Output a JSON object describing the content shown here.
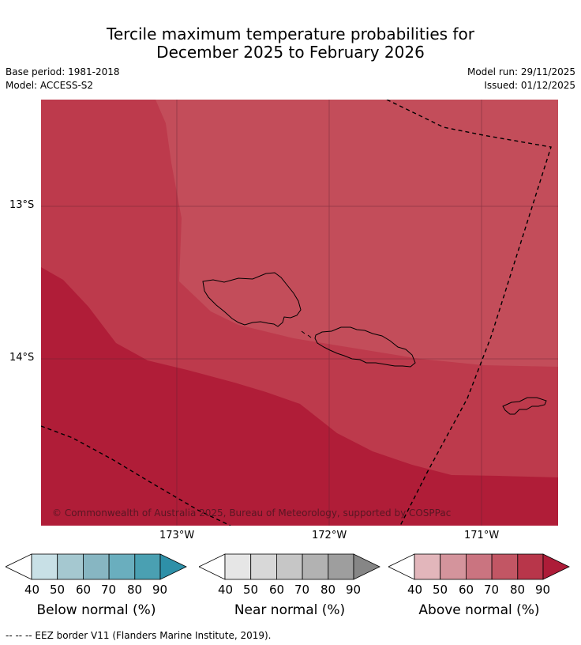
{
  "title": {
    "line1": "Tercile maximum temperature probabilities for",
    "line2": "December 2025 to February 2026"
  },
  "meta": {
    "base_period": "Base period: 1981-2018",
    "model": "Model: ACCESS-S2",
    "model_run": "Model run: 29/11/2025",
    "issued": "Issued: 01/12/2025"
  },
  "map": {
    "copyright": "© Commonwealth of Australia 2025, Bureau of Meteorology, supported by COSPPac",
    "lat_labels": [
      "13°S",
      "14°S"
    ],
    "lon_labels": [
      "173°W",
      "172°W",
      "171°W"
    ]
  },
  "legend": {
    "ticks": [
      "40",
      "50",
      "60",
      "70",
      "80",
      "90"
    ],
    "below": {
      "title": "Below normal (%)",
      "colors": [
        "#ffffff",
        "#c8e0e6",
        "#a5c8d0",
        "#87b6c2",
        "#6aaebe",
        "#4aa0b2",
        "#2e90a8"
      ]
    },
    "near": {
      "title": "Near normal (%)",
      "colors": [
        "#ffffff",
        "#e6e6e6",
        "#d8d8d8",
        "#c6c6c6",
        "#b2b2b2",
        "#9e9e9e",
        "#868686"
      ]
    },
    "above": {
      "title": "Above normal (%)",
      "colors": [
        "#ffffff",
        "#e2b6bb",
        "#d4949c",
        "#ca7480",
        "#c25664",
        "#b8364a",
        "#ad1c38"
      ]
    }
  },
  "footnote": "--  --  -- EEZ border V11 (Flanders Marine Institute, 2019)."
}
